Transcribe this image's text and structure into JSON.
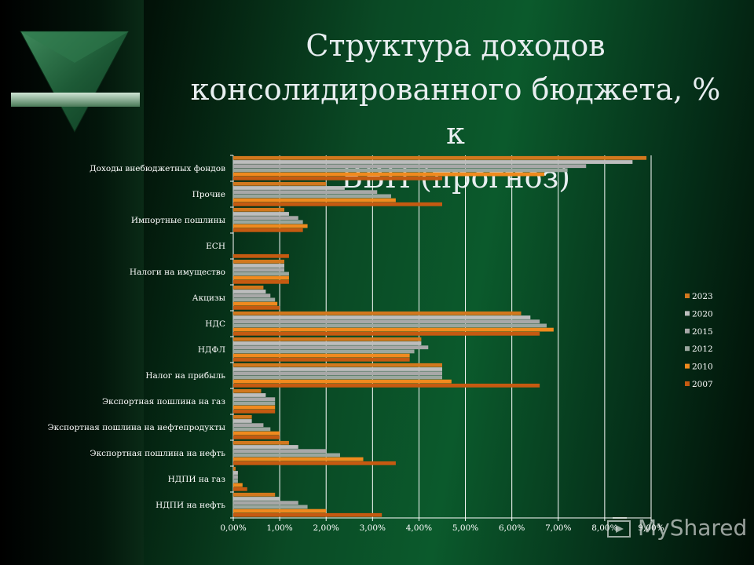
{
  "slide": {
    "title_lines": [
      "Структура доходов",
      "консолидированного бюджета, % к",
      "ВВП (прогноз)"
    ],
    "watermark_text": "MyShared",
    "logo_icon": "green-triangle-logo-icon"
  },
  "chart_data": {
    "type": "bar",
    "orientation": "horizontal",
    "title": "",
    "xlabel": "",
    "ylabel": "",
    "xlim": [
      0,
      9
    ],
    "x_ticks": [
      "0,00%",
      "1,00%",
      "2,00%",
      "3,00%",
      "4,00%",
      "5,00%",
      "6,00%",
      "7,00%",
      "8,00%",
      "9,00%"
    ],
    "grid": true,
    "legend_position": "right",
    "categories": [
      "Доходы внебюджетных фондов",
      "Прочие",
      "Импортные пошлины",
      "ЕСН",
      "Налоги на имущество",
      "Акцизы",
      "НДС",
      "НДФЛ",
      "Налог на прибыль",
      "Экспортная пошлина на газ",
      "Экспортная пошлина на нефтепродукты",
      "Экспортная пошлина на нефть",
      "НДПИ на газ",
      "НДПИ на нефть"
    ],
    "series": [
      {
        "name": "2023",
        "color": "#d2781e",
        "values": [
          8.9,
          2.0,
          1.1,
          0.0,
          1.1,
          0.65,
          6.2,
          4.05,
          4.5,
          0.6,
          0.4,
          1.2,
          0.05,
          0.9
        ]
      },
      {
        "name": "2020",
        "color": "#bdbdbd",
        "values": [
          8.6,
          2.4,
          1.2,
          0.0,
          1.1,
          0.7,
          6.4,
          4.05,
          4.5,
          0.7,
          0.4,
          1.4,
          0.1,
          1.0
        ]
      },
      {
        "name": "2015",
        "color": "#a8a8a8",
        "values": [
          7.6,
          3.1,
          1.4,
          0.0,
          1.1,
          0.8,
          6.6,
          4.2,
          4.5,
          0.9,
          0.65,
          2.0,
          0.1,
          1.4
        ]
      },
      {
        "name": "2012",
        "color": "#9ba79f",
        "values": [
          7.2,
          3.4,
          1.5,
          0.0,
          1.2,
          0.9,
          6.75,
          3.9,
          4.5,
          0.9,
          0.8,
          2.3,
          0.1,
          1.6
        ]
      },
      {
        "name": "2010",
        "color": "#f08a1e",
        "values": [
          6.7,
          3.5,
          1.6,
          0.0,
          1.2,
          0.95,
          6.9,
          3.8,
          4.7,
          0.9,
          1.0,
          2.8,
          0.2,
          2.0
        ]
      },
      {
        "name": "2007",
        "color": "#c55a11",
        "values": [
          4.5,
          4.5,
          1.5,
          1.2,
          1.2,
          1.0,
          6.6,
          3.8,
          6.6,
          0.9,
          1.0,
          3.5,
          0.3,
          3.2
        ]
      }
    ]
  }
}
